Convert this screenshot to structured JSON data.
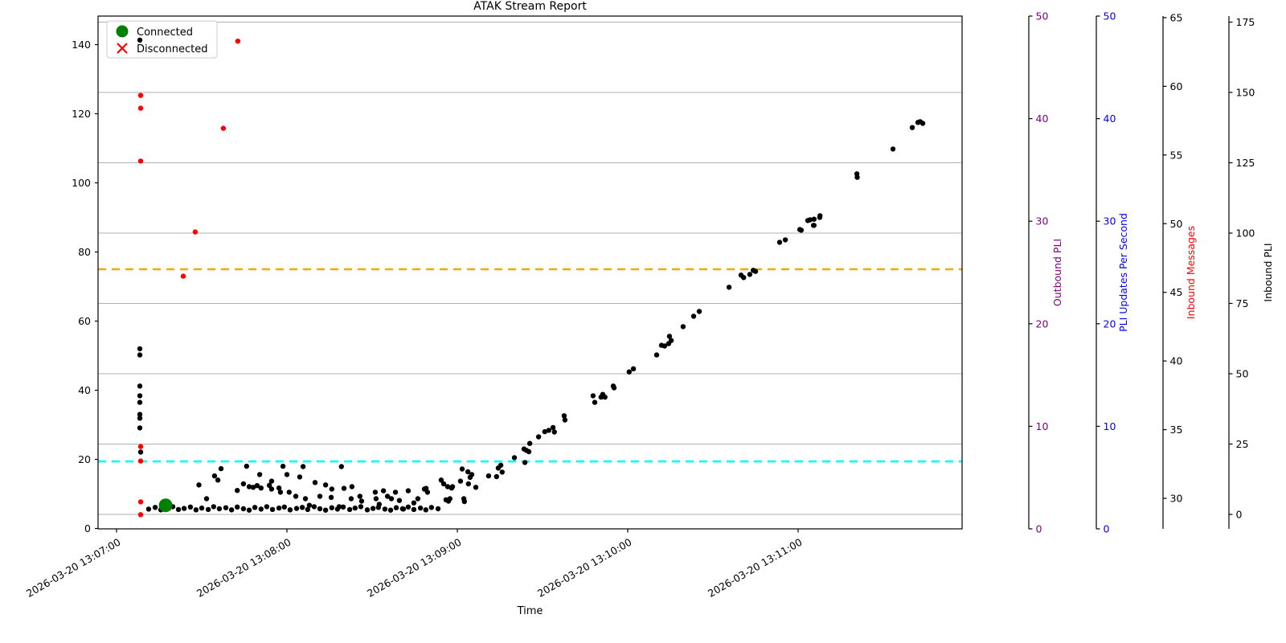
{
  "title": "ATAK Stream Report",
  "xlabel": "Time",
  "legend": [
    {
      "label": "Connected",
      "marker": "circle",
      "color": "#008000"
    },
    {
      "label": "Disconnected",
      "marker": "x",
      "color": "#ff0000"
    }
  ],
  "colors": {
    "grid": "#b0b0b0",
    "spine": "#000000",
    "orange_threshold": "#ffa500",
    "cyan_threshold": "#00ffff",
    "outbound_pli": "#800080",
    "pli_updates": "#0000ff",
    "inbound_messages_label": "#ff0000",
    "inbound_pli": "#000000",
    "points": "#000000",
    "disconnected": "#ff0000",
    "connected": "#008000"
  },
  "chart_data": {
    "type": "scatter",
    "title": "ATAK Stream Report",
    "xlabel": "Time",
    "x_unit": "seconds after 2026-03-20 13:07:00",
    "x_ticks": [
      "2026-03-20 13:07:00",
      "2026-03-20 13:08:00",
      "2026-03-20 13:09:00",
      "2026-03-20 13:10:00",
      "2026-03-20 13:11:00"
    ],
    "y_left": {
      "ticks": [
        0,
        20,
        40,
        60,
        80,
        100,
        120,
        140
      ],
      "lim": [
        0,
        148
      ]
    },
    "right_axes": [
      {
        "label": "Outbound PLI",
        "tick_color": "#800080",
        "label_color": "#800080",
        "ticks": [
          0,
          10,
          20,
          30,
          40,
          50
        ],
        "lim": [
          0,
          50
        ]
      },
      {
        "label": "PLI Updates Per Second",
        "tick_color": "#0000ff",
        "label_color": "#0000ff",
        "ticks": [
          0,
          10,
          20,
          30,
          40,
          50
        ],
        "lim": [
          0,
          50
        ]
      },
      {
        "label": "Inbound Messages",
        "tick_color": "#000000",
        "label_color": "#ff0000",
        "ticks": [
          30,
          35,
          40,
          45,
          50,
          55,
          60,
          65
        ],
        "lim": [
          27.8,
          65.2
        ]
      },
      {
        "label": "Inbound PLI",
        "tick_color": "#000000",
        "label_color": "#000000",
        "ticks": [
          0,
          25,
          50,
          75,
          100,
          125,
          150,
          175
        ],
        "lim": [
          -5,
          177
        ]
      }
    ],
    "thresholds": [
      {
        "name": "upper-threshold",
        "value": 75,
        "color": "#ffa500",
        "style": "dashed"
      },
      {
        "name": "lower-threshold",
        "value": 19.4,
        "color": "#00ffff",
        "style": "dashed"
      }
    ],
    "series": [
      {
        "name": "stream-points",
        "marker": "dot",
        "color": "#000000",
        "points": [
          [
            8.2,
            141.3
          ],
          [
            8.2,
            52
          ],
          [
            8.2,
            50.2
          ],
          [
            8.2,
            41.2
          ],
          [
            8.2,
            38.4
          ],
          [
            8.2,
            36.5
          ],
          [
            8.2,
            33
          ],
          [
            8.2,
            31.9
          ],
          [
            8.2,
            29.1
          ],
          [
            8.5,
            22.1
          ],
          [
            11.3,
            5.6
          ],
          [
            13.6,
            6.1
          ],
          [
            15.6,
            5.4
          ],
          [
            17.5,
            5.9
          ],
          [
            19.8,
            6.3
          ],
          [
            21.8,
            5.5
          ],
          [
            23.8,
            5.8
          ],
          [
            26,
            6.2
          ],
          [
            28,
            5.4
          ],
          [
            30,
            5.9
          ],
          [
            32.3,
            5.5
          ],
          [
            34.2,
            6.3
          ],
          [
            36.2,
            5.7
          ],
          [
            38.5,
            6
          ],
          [
            40.5,
            5.4
          ],
          [
            42.5,
            6.2
          ],
          [
            44.7,
            5.7
          ],
          [
            46.7,
            5.3
          ],
          [
            48.7,
            6.1
          ],
          [
            50.9,
            5.6
          ],
          [
            52.9,
            6.3
          ],
          [
            54.9,
            5.5
          ],
          [
            57.2,
            5.9
          ],
          [
            59.1,
            6.2
          ],
          [
            61.1,
            5.4
          ],
          [
            63.4,
            5.8
          ],
          [
            65.4,
            6.1
          ],
          [
            67.3,
            5.5
          ],
          [
            69.6,
            6.3
          ],
          [
            71.6,
            5.7
          ],
          [
            73.6,
            5.3
          ],
          [
            75.8,
            6
          ],
          [
            77.8,
            5.6
          ],
          [
            79.8,
            6.2
          ],
          [
            82.1,
            5.5
          ],
          [
            84,
            5.9
          ],
          [
            86,
            6.3
          ],
          [
            88.3,
            5.4
          ],
          [
            90.3,
            5.8
          ],
          [
            92.2,
            6.1
          ],
          [
            94.5,
            5.6
          ],
          [
            96.5,
            5.3
          ],
          [
            98.5,
            6
          ],
          [
            100.7,
            5.7
          ],
          [
            102.7,
            6.2
          ],
          [
            104.7,
            5.5
          ],
          [
            107,
            5.9
          ],
          [
            108.9,
            5.4
          ],
          [
            110.9,
            6.1
          ],
          [
            113.2,
            5.7
          ],
          [
            29,
            12.6
          ],
          [
            31.7,
            8.6
          ],
          [
            34.5,
            15.2
          ],
          [
            35.7,
            14
          ],
          [
            36.8,
            17.3
          ],
          [
            42.5,
            11
          ],
          [
            44.7,
            12.9
          ],
          [
            45.8,
            18
          ],
          [
            46.7,
            12.1
          ],
          [
            48.1,
            11.9
          ],
          [
            49.5,
            12.4
          ],
          [
            50.4,
            15.6
          ],
          [
            50.9,
            11.7
          ],
          [
            53.8,
            12.5
          ],
          [
            54.6,
            11.4
          ],
          [
            54.6,
            13.7
          ],
          [
            57.2,
            11.7
          ],
          [
            57.7,
            10.5
          ],
          [
            58.6,
            18
          ],
          [
            60,
            15.6
          ],
          [
            60.8,
            10.5
          ],
          [
            63.1,
            9.3
          ],
          [
            64.5,
            14.9
          ],
          [
            65.7,
            17.9
          ],
          [
            66.5,
            8.6
          ],
          [
            67.9,
            6.7
          ],
          [
            69.9,
            13.3
          ],
          [
            71.6,
            9.3
          ],
          [
            73.6,
            12.6
          ],
          [
            75.6,
            9
          ],
          [
            75.8,
            11.4
          ],
          [
            78.4,
            6.3
          ],
          [
            79.2,
            17.9
          ],
          [
            80.1,
            11.6
          ],
          [
            82.6,
            8.6
          ],
          [
            82.9,
            12.1
          ],
          [
            85.7,
            9.3
          ],
          [
            86.3,
            7.9
          ],
          [
            91.1,
            10.5
          ],
          [
            91.4,
            8.6
          ],
          [
            92.5,
            7
          ],
          [
            94,
            10.9
          ],
          [
            95.4,
            9.3
          ],
          [
            96.8,
            8.6
          ],
          [
            98.2,
            10.5
          ],
          [
            99.6,
            8.1
          ],
          [
            101,
            5.6
          ],
          [
            102.7,
            10.9
          ],
          [
            104.7,
            7.4
          ],
          [
            106.1,
            8.6
          ],
          [
            108.4,
            11.4
          ],
          [
            109.5,
            10.5
          ],
          [
            109,
            11.6
          ],
          [
            114.3,
            14
          ],
          [
            115.2,
            12.9
          ],
          [
            116,
            8.3
          ],
          [
            116.6,
            12.1
          ],
          [
            116.9,
            7.9
          ],
          [
            117.4,
            8.6
          ],
          [
            118,
            11.7
          ],
          [
            118.3,
            12.1
          ],
          [
            121.1,
            13.7
          ],
          [
            121.7,
            17.2
          ],
          [
            122.3,
            8.6
          ],
          [
            122.5,
            7.8
          ],
          [
            123.7,
            16.4
          ],
          [
            123.9,
            12.9
          ],
          [
            124.5,
            14.8
          ],
          [
            125.1,
            15.6
          ],
          [
            126.5,
            11.9
          ],
          [
            131,
            15.2
          ],
          [
            133.8,
            15
          ],
          [
            134.4,
            17.5
          ],
          [
            135.3,
            18.3
          ],
          [
            135.8,
            16.3
          ],
          [
            140.1,
            20.5
          ],
          [
            143.5,
            23
          ],
          [
            143.8,
            19.1
          ],
          [
            144.3,
            22.6
          ],
          [
            145.2,
            22.2
          ],
          [
            145.5,
            24.6
          ],
          [
            148.6,
            26.5
          ],
          [
            150.8,
            28
          ],
          [
            152.2,
            28.4
          ],
          [
            153.7,
            29.2
          ],
          [
            154.2,
            27.9
          ],
          [
            157.6,
            32.6
          ],
          [
            157.9,
            31.4
          ],
          [
            167.8,
            38.4
          ],
          [
            168.4,
            36.5
          ],
          [
            170.6,
            38
          ],
          [
            171.2,
            38.8
          ],
          [
            172,
            38
          ],
          [
            174.9,
            41.2
          ],
          [
            175.2,
            40.7
          ],
          [
            180.5,
            45.3
          ],
          [
            182,
            46.2
          ],
          [
            190.2,
            50.2
          ],
          [
            191.9,
            53
          ],
          [
            193,
            52.8
          ],
          [
            194.4,
            53.5
          ],
          [
            194.7,
            55.6
          ],
          [
            195.3,
            54.4
          ],
          [
            199.5,
            58.4
          ],
          [
            203.2,
            61.4
          ],
          [
            205.2,
            62.8
          ],
          [
            215.7,
            69.8
          ],
          [
            219.9,
            73.3
          ],
          [
            220.8,
            72.6
          ],
          [
            223,
            73.5
          ],
          [
            224.2,
            74.7
          ],
          [
            225,
            74.4
          ],
          [
            233.5,
            82.8
          ],
          [
            235.5,
            83.5
          ],
          [
            240.6,
            86.5
          ],
          [
            241.1,
            86.3
          ],
          [
            243.4,
            89.1
          ],
          [
            244.2,
            89.3
          ],
          [
            245.4,
            87.7
          ],
          [
            245.6,
            89.5
          ],
          [
            245.6,
            87.7
          ],
          [
            247.6,
            90
          ],
          [
            247.7,
            90.5
          ],
          [
            260.7,
            102.6
          ],
          [
            260.8,
            101.6
          ],
          [
            273.4,
            109.8
          ],
          [
            280.2,
            116
          ],
          [
            282.2,
            117.5
          ],
          [
            283,
            117.7
          ],
          [
            283.9,
            117.2
          ]
        ]
      },
      {
        "name": "disconnected-events",
        "marker": "dot",
        "color": "#ff0000",
        "points": [
          [
            8.5,
            125.3
          ],
          [
            8.5,
            121.6
          ],
          [
            8.5,
            106.3
          ],
          [
            8.5,
            23.7
          ],
          [
            8.5,
            19.5
          ],
          [
            8.5,
            7.7
          ],
          [
            8.5,
            4.0
          ],
          [
            23.5,
            73
          ],
          [
            27.7,
            85.8
          ],
          [
            37.6,
            115.8
          ],
          [
            42.7,
            141
          ]
        ]
      },
      {
        "name": "connected-events",
        "marker": "circle-large",
        "color": "#008000",
        "points": [
          [
            17.3,
            6.7
          ]
        ]
      }
    ]
  }
}
